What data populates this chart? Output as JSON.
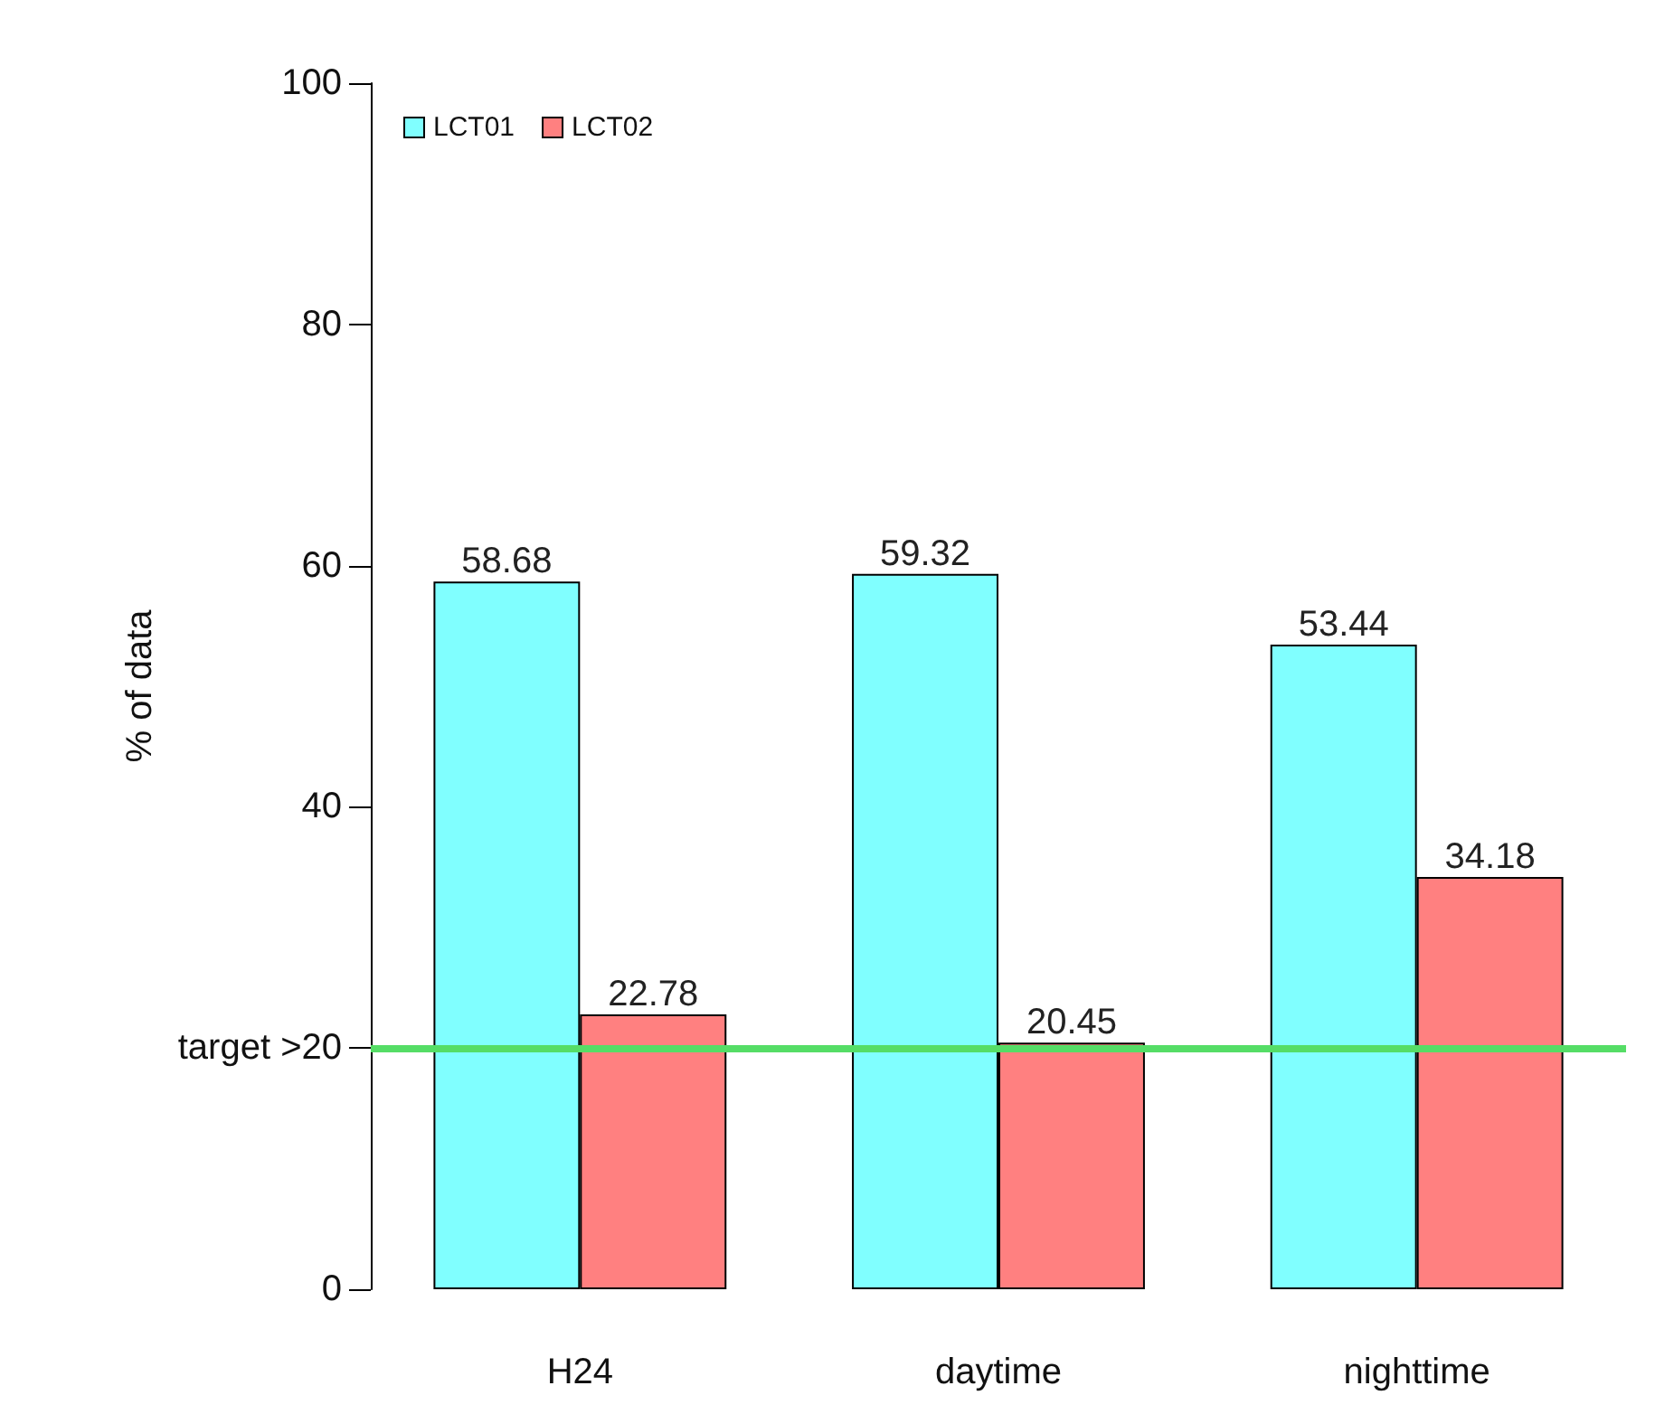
{
  "chart_data": {
    "type": "bar",
    "ylabel": "% of data",
    "categories": [
      "H24",
      "daytime",
      "nighttime"
    ],
    "series": [
      {
        "name": "LCT01",
        "color": "#80ffff",
        "values": [
          58.68,
          59.32,
          53.44
        ]
      },
      {
        "name": "LCT02",
        "color": "#ff8080",
        "values": [
          22.78,
          20.45,
          34.18
        ]
      }
    ],
    "ylim": [
      0,
      100
    ],
    "yticks": [
      0,
      {
        "value": 20,
        "label": "target >20"
      },
      40,
      60,
      80,
      100
    ],
    "ref_lines": [
      {
        "axis": "y",
        "value": 20,
        "color": "#55dd66"
      }
    ],
    "data_labels": true,
    "grid": false,
    "legend": "top left"
  }
}
